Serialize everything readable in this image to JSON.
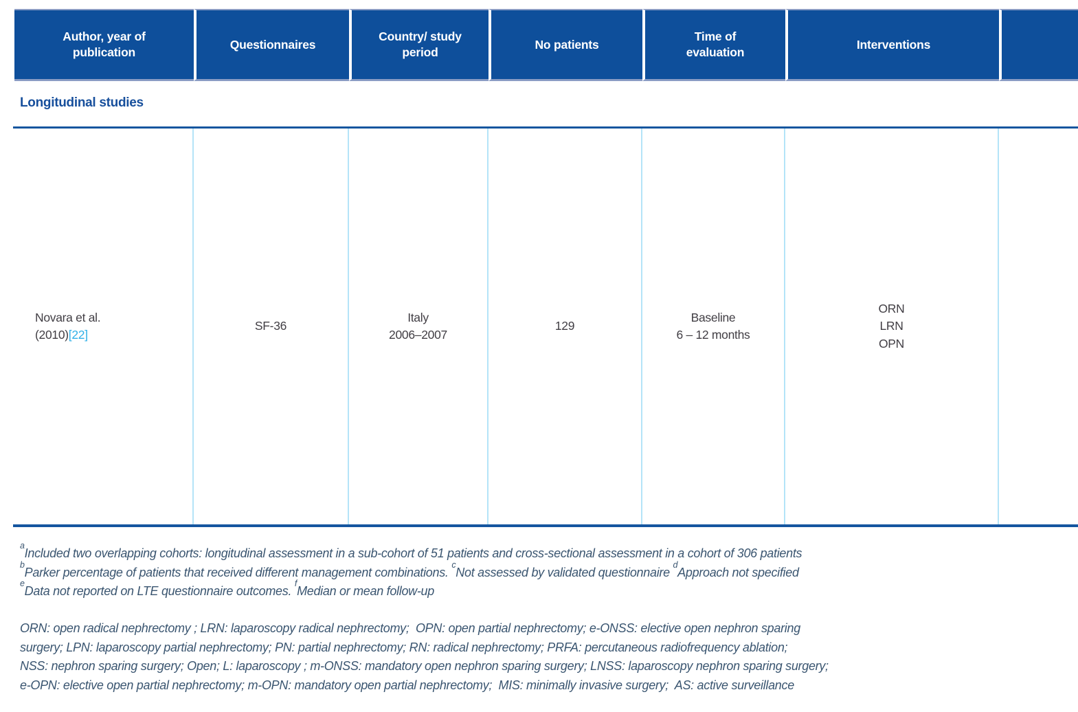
{
  "colors": {
    "header-blue": "#0e4f9b",
    "rule-blue": "#15569f",
    "section-blue": "#174f9c",
    "cell-border-blue": "#b4e4f8",
    "body-text": "#413e44",
    "footnote-text": "#3a5570",
    "citation-blue": "#2fb0e8"
  },
  "table": {
    "columns": [
      [
        "Author, year of",
        "publication"
      ],
      [
        "Questionnaires"
      ],
      [
        "Country/ study",
        "period"
      ],
      [
        "No patients"
      ],
      [
        "Time of",
        "evaluation"
      ],
      [
        "Interventions"
      ],
      [
        ""
      ]
    ],
    "section_label": "Longitudinal studies",
    "row": {
      "author": "Novara et al.",
      "year": "(2010)",
      "citation": "[22]",
      "questionnaire": "SF-36",
      "country": "Italy",
      "study_period": "2006–2007",
      "no_patients": "129",
      "time_line1": "Baseline",
      "time_line2": "6 – 12 months",
      "interventions": [
        "ORN",
        "LRN",
        "OPN"
      ]
    }
  },
  "footnotes": {
    "a_sup": "a",
    "a_text": "Included two overlapping cohorts: longitudinal assessment in a sub-cohort of 51 patients and cross-sectional assessment in a cohort of 306 patients",
    "b_sup": "b",
    "b_text": "Parker percentage of patients that received different management combinations. ",
    "c_sup": "c",
    "c_text": "Not assessed by validated questionnaire ",
    "d_sup": "d",
    "d_text": "Approach not specified",
    "e_sup": "e",
    "e_text": "Data not reported on LTE questionnaire outcomes. ",
    "f_sup": "f",
    "f_text": "Median or mean follow-up"
  },
  "abbreviations": [
    "ORN: open radical nephrectomy ; LRN: laparoscopy radical nephrectomy;  OPN: open partial nephrectomy; e-ONSS: elective open nephron sparing",
    "surgery; LPN: laparoscopy partial nephrectomy; PN: partial nephrectomy; RN: radical nephrectomy; PRFA: percutaneous radiofrequency ablation;",
    "NSS: nephron sparing surgery; Open; L: laparoscopy ; m-ONSS: mandatory open nephron sparing surgery; LNSS: laparoscopy nephron sparing surgery;",
    "e-OPN: elective open partial nephrectomy; m-OPN: mandatory open partial nephrectomy;  MIS: minimally invasive surgery;  AS: active surveillance"
  ]
}
